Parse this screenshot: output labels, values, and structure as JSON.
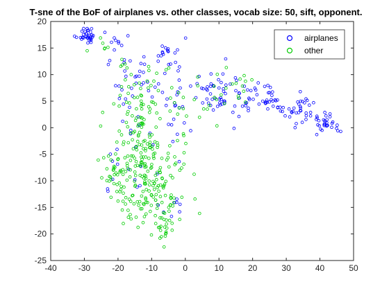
{
  "chart_data": {
    "type": "scatter",
    "title": "T-sne of the BoF of airplanes vs. other classes, vocab size: 50, sift, opponent.",
    "xlabel": "",
    "ylabel": "",
    "xlim": [
      -40,
      50
    ],
    "ylim": [
      -25,
      20
    ],
    "xticks": [
      -40,
      -30,
      -20,
      -10,
      0,
      10,
      20,
      30,
      40,
      50
    ],
    "yticks": [
      -25,
      -20,
      -15,
      -10,
      -5,
      0,
      5,
      10,
      15,
      20
    ],
    "grid": false,
    "legend_position": "top-right",
    "series": [
      {
        "name": "airplanes",
        "color": "#0000ff",
        "marker": "circle-open",
        "clusters": [
          {
            "cx": -29.5,
            "cy": 17.5,
            "sx": 1.6,
            "sy": 0.8,
            "n": 34
          },
          {
            "cx": -21.0,
            "cy": 16.0,
            "sx": 1.2,
            "sy": 1.0,
            "n": 8
          },
          {
            "cx": -17.0,
            "cy": 11.0,
            "sx": 2.5,
            "sy": 2.5,
            "n": 20
          },
          {
            "cx": -5.0,
            "cy": 13.5,
            "sx": 2.5,
            "sy": 2.0,
            "n": 20
          },
          {
            "cx": -10.0,
            "cy": 8.0,
            "sx": 3.0,
            "sy": 2.0,
            "n": 10
          },
          {
            "cx": -3.0,
            "cy": 4.0,
            "sx": 2.5,
            "sy": 2.5,
            "n": 15
          },
          {
            "cx": 5.0,
            "cy": 7.0,
            "sx": 3.0,
            "sy": 2.0,
            "n": 20
          },
          {
            "cx": 12.0,
            "cy": 6.5,
            "sx": 3.0,
            "sy": 2.5,
            "n": 30
          },
          {
            "cx": 20.0,
            "cy": 6.0,
            "sx": 3.5,
            "sy": 1.5,
            "n": 30
          },
          {
            "cx": 26.0,
            "cy": 5.0,
            "sx": 2.0,
            "sy": 1.2,
            "n": 15
          },
          {
            "cx": 34.5,
            "cy": 3.0,
            "sx": 2.5,
            "sy": 1.4,
            "n": 35
          },
          {
            "cx": 42.0,
            "cy": 1.0,
            "sx": 2.0,
            "sy": 1.0,
            "n": 30
          },
          {
            "cx": -16.0,
            "cy": 2.0,
            "sx": 2.5,
            "sy": 3.0,
            "n": 10
          },
          {
            "cx": -22.0,
            "cy": -8.0,
            "sx": 1.5,
            "sy": 2.0,
            "n": 6
          },
          {
            "cx": -12.0,
            "cy": -8.0,
            "sx": 4.0,
            "sy": 5.0,
            "n": 12
          },
          {
            "cx": -3.0,
            "cy": -14.0,
            "sx": 2.0,
            "sy": 2.0,
            "n": 8
          }
        ]
      },
      {
        "name": "other",
        "color": "#00cc00",
        "marker": "circle-open",
        "clusters": [
          {
            "cx": -24.0,
            "cy": 15.5,
            "sx": 2.0,
            "sy": 1.2,
            "n": 6
          },
          {
            "cx": -21.5,
            "cy": -8.0,
            "sx": 1.8,
            "sy": 2.5,
            "n": 25
          },
          {
            "cx": -13.0,
            "cy": -5.0,
            "sx": 4.5,
            "sy": 5.0,
            "n": 140
          },
          {
            "cx": -9.0,
            "cy": -13.0,
            "sx": 4.5,
            "sy": 3.5,
            "n": 80
          },
          {
            "cx": -18.0,
            "cy": -15.0,
            "sx": 1.5,
            "sy": 2.0,
            "n": 10
          },
          {
            "cx": -6.0,
            "cy": -18.5,
            "sx": 1.5,
            "sy": 1.2,
            "n": 18
          },
          {
            "cx": -14.0,
            "cy": 4.0,
            "sx": 3.0,
            "sy": 2.5,
            "n": 25
          },
          {
            "cx": -7.0,
            "cy": 7.5,
            "sx": 3.0,
            "sy": 2.5,
            "n": 20
          },
          {
            "cx": -18.0,
            "cy": 10.5,
            "sx": 1.5,
            "sy": 1.5,
            "n": 8
          },
          {
            "cx": 8.0,
            "cy": 5.0,
            "sx": 3.0,
            "sy": 2.5,
            "n": 15
          },
          {
            "cx": 16.0,
            "cy": 6.5,
            "sx": 2.5,
            "sy": 2.0,
            "n": 12
          },
          {
            "cx": -2.0,
            "cy": -4.0,
            "sx": 2.0,
            "sy": 4.0,
            "n": 15
          }
        ]
      }
    ]
  }
}
